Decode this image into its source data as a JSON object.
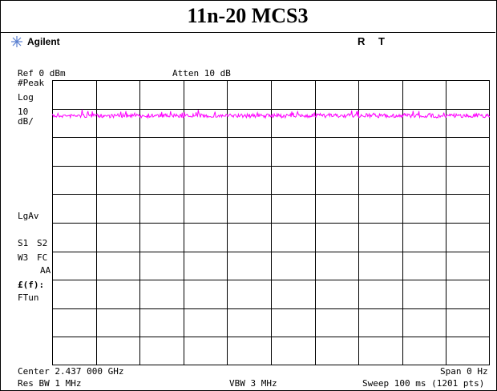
{
  "title": "11n-20 MCS3",
  "brand": {
    "name": "Agilent",
    "icon": "starburst-icon"
  },
  "status": {
    "r": "R",
    "t": "T"
  },
  "header": {
    "ref_level": "Ref 0 dBm",
    "attenuation": "Atten 10 dB"
  },
  "left_annotations": {
    "detector": "#Peak",
    "scale_type": "Log",
    "scale_value": "10",
    "scale_unit": "dB/",
    "averaging": "LgAv",
    "s1": "S1",
    "s2": "S2",
    "w3": "W3",
    "fc": "FC",
    "aa": "AA",
    "ef": "£(f):",
    "ftun": "FTun"
  },
  "footer": {
    "center": "Center 2.437 000 GHz",
    "span": "Span 0 Hz",
    "rbw": "Res BW 1 MHz",
    "vbw": "VBW 3 MHz",
    "sweep": "Sweep 100 ms (1201 pts)"
  },
  "trace": {
    "color": "#ff00ff",
    "level_db": -12.5,
    "points": 1201
  },
  "colors": {
    "grid": "#000000",
    "trace": "#ff00ff"
  }
}
